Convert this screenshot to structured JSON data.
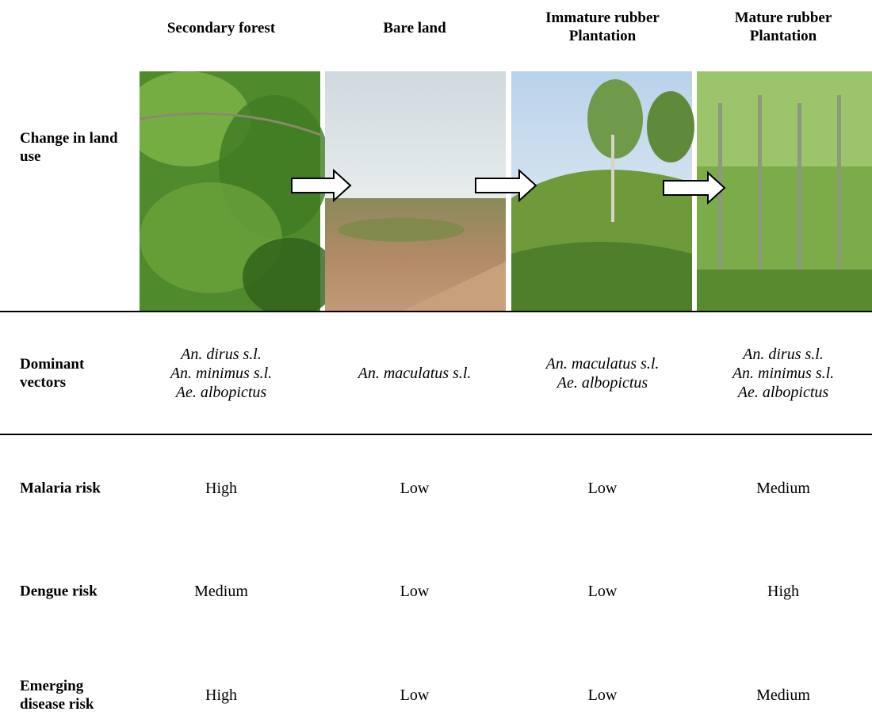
{
  "columns": [
    "Secondary forest",
    "Bare land",
    "Immature rubber Plantation",
    "Mature rubber Plantation"
  ],
  "rows": [
    {
      "label": "Change in land use"
    },
    {
      "label": "Dominant vectors",
      "cells": [
        [
          "An. dirus s.l.",
          "An. minimus s.l.",
          "Ae. albopictus"
        ],
        [
          "An. maculatus s.l."
        ],
        [
          "An. maculatus s.l.",
          "Ae. albopictus"
        ],
        [
          "An. dirus s.l.",
          "An. minimus s.l.",
          "Ae. albopictus"
        ]
      ]
    },
    {
      "label": "Malaria risk",
      "cells": [
        "High",
        "Low",
        "Low",
        "Medium"
      ]
    },
    {
      "label": "Dengue risk",
      "cells": [
        "Medium",
        "Low",
        "Low",
        "High"
      ]
    },
    {
      "label": "Emerging disease risk",
      "cells": [
        "High",
        "Low",
        "Low",
        "Medium"
      ]
    }
  ]
}
